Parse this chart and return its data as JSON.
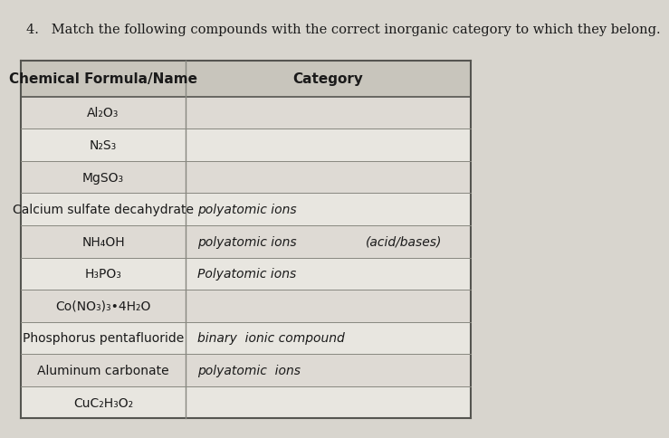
{
  "title": "4.   Match the following compounds with the correct inorganic category to which they belong.",
  "col1_header": "Chemical Formula/Name",
  "col2_header": "Category",
  "rows": [
    {
      "formula": "Al₂O₃",
      "category": "",
      "hw": false
    },
    {
      "formula": "N₂S₃",
      "category": "",
      "hw": false
    },
    {
      "formula": "MgSO₃",
      "category": "",
      "hw": false
    },
    {
      "formula": "Calcium sulfate decahydrate",
      "category": "polyatomic ions",
      "hw": true
    },
    {
      "formula": "NH₄OH",
      "category_left": "polyatomic ions",
      "category_right": "(acid/bases)",
      "hw": true,
      "split": true
    },
    {
      "formula": "H₃PO₃",
      "category": "Polyatomic ions",
      "hw": true
    },
    {
      "formula": "Co(NO₃)₃•4H₂O",
      "category": "",
      "hw": false
    },
    {
      "formula": "Phosphorus pentafluoride",
      "category": "binary  ionic compound",
      "hw": true
    },
    {
      "formula": "Aluminum carbonate",
      "category": "polyatomic  ions",
      "hw": true
    },
    {
      "formula": "CuC₂H₃O₂",
      "category": "",
      "hw": false
    }
  ],
  "bg_color": "#d8d5ce",
  "table_bg": "#e8e6e0",
  "header_bg": "#c8c5bc",
  "row_alt_bg": "#e0ddd7",
  "line_color": "#888880",
  "text_color": "#1a1a1a",
  "hw_color": "#1a1a1a",
  "title_fontsize": 10.5,
  "header_fontsize": 11,
  "row_fontsize": 10,
  "hw_fontsize": 10
}
